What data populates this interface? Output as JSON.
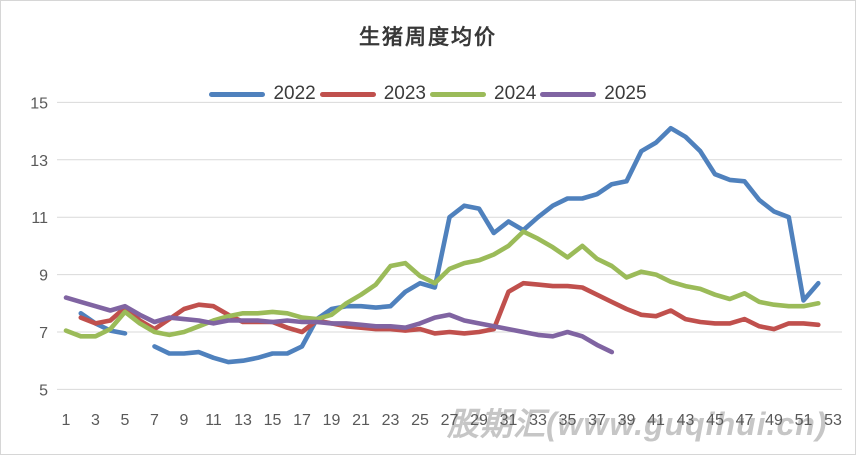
{
  "title": "生猪周度均价",
  "watermark": {
    "text": "股期汇(www.guqihui.cn)"
  },
  "colors": {
    "grid": "#d9d9d9",
    "tick_text": "#595959",
    "series_2022": "#4f81bd",
    "series_2023": "#c0504d",
    "series_2024": "#9bbb59",
    "series_2025": "#8064a2"
  },
  "chart_data": {
    "type": "line",
    "title": "生猪周度均价",
    "xlabel": "",
    "ylabel": "",
    "x_range": [
      1,
      53
    ],
    "ylim": [
      5,
      15
    ],
    "y_ticks": [
      5,
      7,
      9,
      11,
      13,
      15
    ],
    "x_label_ticks": [
      1,
      3,
      5,
      7,
      9,
      11,
      13,
      15,
      17,
      19,
      21,
      23,
      25,
      27,
      29,
      31,
      33,
      35,
      37,
      39,
      41,
      43,
      45,
      47,
      49,
      51,
      53
    ],
    "grid": "horizontal",
    "legend_position": "top",
    "x_unit": "week",
    "series": [
      {
        "name": "2022",
        "color": "#4f81bd",
        "values": [
          null,
          7.65,
          7.3,
          7.05,
          6.95,
          null,
          6.5,
          6.25,
          6.25,
          6.3,
          6.1,
          5.95,
          6.0,
          6.1,
          6.25,
          6.25,
          6.5,
          7.45,
          7.8,
          7.9,
          7.9,
          7.85,
          7.9,
          8.4,
          8.7,
          8.55,
          11.0,
          11.4,
          11.3,
          10.45,
          10.85,
          10.55,
          11.0,
          11.4,
          11.65,
          11.65,
          11.8,
          12.15,
          12.25,
          13.3,
          13.6,
          14.1,
          13.8,
          13.3,
          12.5,
          12.3,
          12.25,
          11.6,
          11.2,
          11.0,
          8.1,
          8.7
        ]
      },
      {
        "name": "2023",
        "color": "#c0504d",
        "values": [
          null,
          7.5,
          7.3,
          7.4,
          7.85,
          7.4,
          7.1,
          7.45,
          7.8,
          7.95,
          7.9,
          7.6,
          7.35,
          7.35,
          7.35,
          7.15,
          7.0,
          7.4,
          7.3,
          7.2,
          7.15,
          7.1,
          7.1,
          7.05,
          7.1,
          6.95,
          7.0,
          6.95,
          7.0,
          7.1,
          8.4,
          8.7,
          8.65,
          8.6,
          8.6,
          8.55,
          8.3,
          8.05,
          7.8,
          7.6,
          7.55,
          7.75,
          7.45,
          7.35,
          7.3,
          7.3,
          7.45,
          7.2,
          7.1,
          7.3,
          7.3,
          7.25
        ]
      },
      {
        "name": "2024",
        "color": "#9bbb59",
        "values": [
          7.05,
          6.85,
          6.85,
          7.1,
          7.7,
          7.3,
          7.0,
          6.9,
          7.0,
          7.2,
          7.4,
          7.55,
          7.65,
          7.65,
          7.7,
          7.65,
          7.5,
          7.45,
          7.6,
          8.0,
          8.3,
          8.65,
          9.3,
          9.4,
          8.95,
          8.7,
          9.2,
          9.4,
          9.5,
          9.7,
          10.0,
          10.5,
          10.25,
          9.95,
          9.6,
          10.0,
          9.55,
          9.3,
          8.9,
          9.1,
          9.0,
          8.75,
          8.6,
          8.5,
          8.3,
          8.15,
          8.35,
          8.05,
          7.95,
          7.9,
          7.9,
          8.0
        ]
      },
      {
        "name": "2025",
        "color": "#8064a2",
        "values": [
          8.2,
          8.05,
          7.9,
          7.75,
          7.9,
          7.6,
          7.35,
          7.5,
          7.45,
          7.4,
          7.3,
          7.4,
          7.4,
          7.4,
          7.35,
          7.4,
          7.35,
          7.35,
          7.3,
          7.3,
          7.25,
          7.2,
          7.2,
          7.15,
          7.3,
          7.5,
          7.6,
          7.4,
          7.3,
          7.2,
          7.1,
          7.0,
          6.9,
          6.85,
          7.0,
          6.85,
          6.55,
          6.3
        ]
      }
    ]
  }
}
